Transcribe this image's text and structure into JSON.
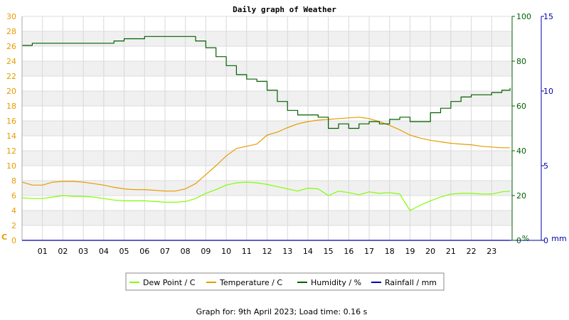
{
  "chart_data": {
    "type": "line",
    "title": "Daily graph of Weather",
    "footer": "Graph for: 9th April 2023; Load time: 0.16 s",
    "x": [
      0.0,
      0.5,
      1.0,
      1.5,
      2.0,
      2.5,
      3.0,
      3.5,
      4.0,
      4.5,
      5.0,
      5.5,
      6.0,
      6.5,
      7.0,
      7.5,
      8.0,
      8.5,
      9.0,
      9.5,
      10.0,
      10.5,
      11.0,
      11.5,
      12.0,
      12.5,
      13.0,
      13.5,
      14.0,
      14.5,
      15.0,
      15.5,
      16.0,
      16.5,
      17.0,
      17.5,
      18.0,
      18.5,
      19.0,
      19.5,
      20.0,
      20.5,
      21.0,
      21.5,
      22.0,
      22.5,
      23.0,
      23.5,
      23.9
    ],
    "xticks": [
      "01",
      "02",
      "03",
      "04",
      "05",
      "06",
      "07",
      "08",
      "09",
      "10",
      "11",
      "12",
      "13",
      "14",
      "15",
      "16",
      "17",
      "18",
      "19",
      "20",
      "21",
      "22",
      "23"
    ],
    "xlim": [
      0,
      24
    ],
    "axes": {
      "left": {
        "label": "C",
        "min": 0,
        "max": 30,
        "ticks": [
          "0",
          "2",
          "4",
          "6",
          "8",
          "10",
          "12",
          "14",
          "16",
          "18",
          "20",
          "22",
          "24",
          "26",
          "28",
          "30"
        ],
        "color": "#e69c00"
      },
      "right1": {
        "label": "%",
        "min": 0,
        "max": 100,
        "ticks": [
          "0",
          "20",
          "40",
          "60",
          "80",
          "100"
        ],
        "color": "#006000"
      },
      "right2": {
        "label": "mm",
        "min": 0,
        "max": 15,
        "ticks": [
          "0",
          "5",
          "10",
          "15"
        ],
        "color": "#0000aa"
      }
    },
    "grid": true,
    "legend_position": "bottom",
    "series": [
      {
        "name": "Dew Point / C",
        "axis": "left",
        "color": "#7fff00",
        "values": [
          5.7,
          5.6,
          5.6,
          5.8,
          6.0,
          5.9,
          5.9,
          5.8,
          5.6,
          5.4,
          5.3,
          5.3,
          5.3,
          5.2,
          5.1,
          5.1,
          5.2,
          5.6,
          6.3,
          6.8,
          7.4,
          7.7,
          7.8,
          7.7,
          7.5,
          7.2,
          6.9,
          6.6,
          7.0,
          6.9,
          6.0,
          6.6,
          6.4,
          6.1,
          6.5,
          6.3,
          6.4,
          6.2,
          4.0,
          4.7,
          5.3,
          5.8,
          6.2,
          6.3,
          6.3,
          6.2,
          6.2,
          6.5,
          6.6
        ]
      },
      {
        "name": "Temperature / C",
        "axis": "left",
        "color": "#e69c00",
        "values": [
          7.8,
          7.4,
          7.4,
          7.8,
          7.9,
          7.9,
          7.8,
          7.6,
          7.4,
          7.1,
          6.9,
          6.8,
          6.8,
          6.7,
          6.6,
          6.6,
          6.9,
          7.6,
          8.8,
          10.0,
          11.3,
          12.3,
          12.6,
          12.9,
          14.1,
          14.5,
          15.1,
          15.6,
          15.9,
          16.1,
          16.2,
          16.3,
          16.4,
          16.5,
          16.3,
          15.9,
          15.4,
          14.8,
          14.1,
          13.7,
          13.4,
          13.2,
          13.0,
          12.9,
          12.8,
          12.6,
          12.5,
          12.4,
          12.4
        ]
      },
      {
        "name": "Humidity / %",
        "axis": "right1",
        "color": "#006000",
        "values": [
          87,
          88,
          88,
          88,
          88,
          88,
          88,
          88,
          88,
          89,
          90,
          90,
          91,
          91,
          91,
          91,
          91,
          89,
          86,
          82,
          78,
          74,
          72,
          71,
          67,
          62,
          58,
          56,
          56,
          55,
          50,
          52,
          50,
          52,
          53,
          52,
          54,
          55,
          53,
          53,
          57,
          59,
          62,
          64,
          65,
          65,
          66,
          67,
          68
        ]
      },
      {
        "name": "Rainfall / mm",
        "axis": "right2",
        "color": "#0000aa",
        "values": [
          0,
          0,
          0,
          0,
          0,
          0,
          0,
          0,
          0,
          0,
          0,
          0,
          0,
          0,
          0,
          0,
          0,
          0,
          0,
          0,
          0,
          0,
          0,
          0,
          0,
          0,
          0,
          0,
          0,
          0,
          0,
          0,
          0,
          0,
          0,
          0,
          0,
          0,
          0,
          0,
          0,
          0,
          0,
          0,
          0,
          0,
          0,
          0,
          0
        ]
      }
    ]
  }
}
